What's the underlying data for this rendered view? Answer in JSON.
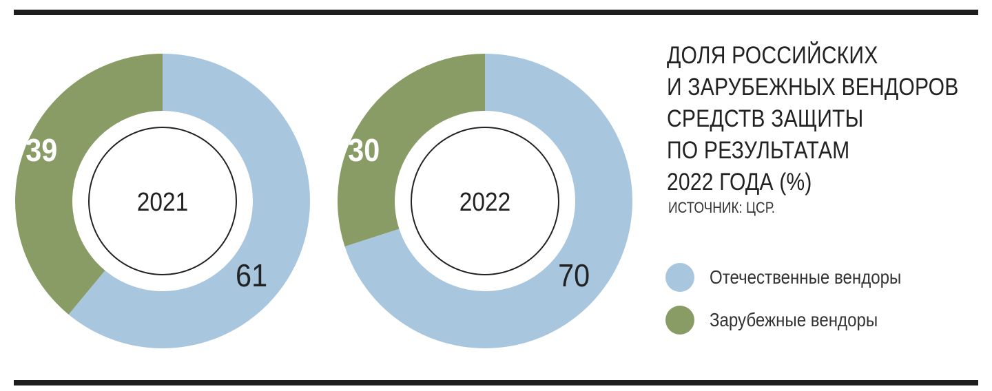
{
  "header": {
    "title_lines": [
      "ДОЛЯ РОССИЙСКИХ",
      "И ЗАРУБЕЖНЫХ ВЕНДОРОВ",
      "СРЕДСТВ ЗАЩИТЫ",
      "ПО РЕЗУЛЬТАТАМ",
      "2022 ГОДА (%)"
    ],
    "source": "ИСТОЧНИК: ЦСР."
  },
  "legend": {
    "items": [
      {
        "label": "Отечественные вендоры",
        "color": "#a8c6de"
      },
      {
        "label": "Зарубежные вендоры",
        "color": "#8a9c66"
      }
    ]
  },
  "colors": {
    "domestic": "#a8c6de",
    "foreign": "#8a9c66",
    "rule": "#1e1e1e"
  },
  "chart_data": [
    {
      "type": "pie",
      "center_label": "2021",
      "slices": [
        {
          "name": "Отечественные вендоры",
          "value": 61,
          "label": "61"
        },
        {
          "name": "Зарубежные вендоры",
          "value": 39,
          "label": "39"
        }
      ]
    },
    {
      "type": "pie",
      "center_label": "2022",
      "slices": [
        {
          "name": "Отечественные вендоры",
          "value": 70,
          "label": "70"
        },
        {
          "name": "Зарубежные вендоры",
          "value": 30,
          "label": "30"
        }
      ]
    }
  ]
}
